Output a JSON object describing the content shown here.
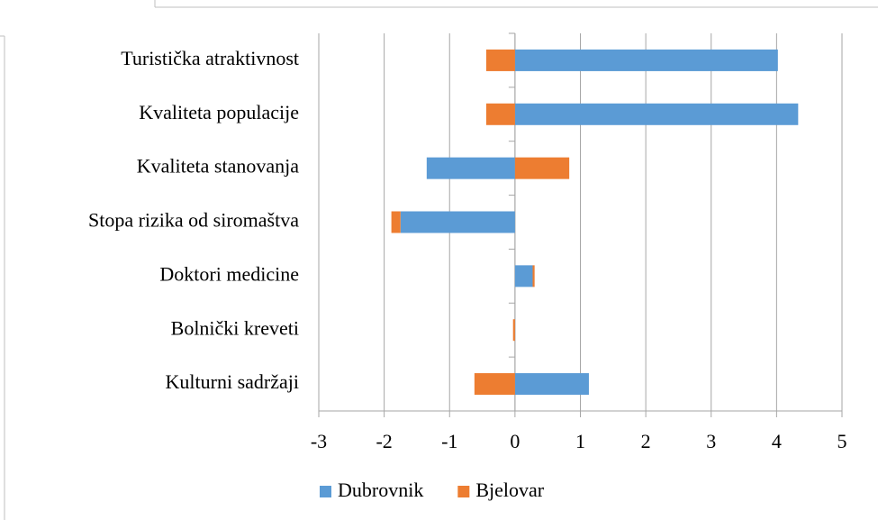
{
  "chart_data": {
    "type": "bar",
    "orientation": "horizontal",
    "stacked": true,
    "categories": [
      "Turistička atraktivnost",
      "Kvaliteta populacije",
      "Kvaliteta stanovanja",
      "Stopa rizika od siromaštva",
      "Doktori medicine",
      "Bolnički kreveti",
      "Kulturni sadržaji"
    ],
    "series": [
      {
        "name": "Dubrovnik",
        "color": "#5b9bd5",
        "values": [
          4.02,
          4.33,
          -1.35,
          -1.75,
          0.27,
          0,
          1.13
        ]
      },
      {
        "name": "Bjelovar",
        "color": "#ed7d31",
        "values": [
          -0.44,
          -0.44,
          0.83,
          -0.14,
          0.03,
          -0.03,
          -0.62
        ]
      }
    ],
    "xlim": [
      -3,
      5
    ],
    "xticks": [
      -3,
      -2,
      -1,
      0,
      1,
      2,
      3,
      4,
      5
    ],
    "grid": true,
    "legend": "bottom"
  }
}
